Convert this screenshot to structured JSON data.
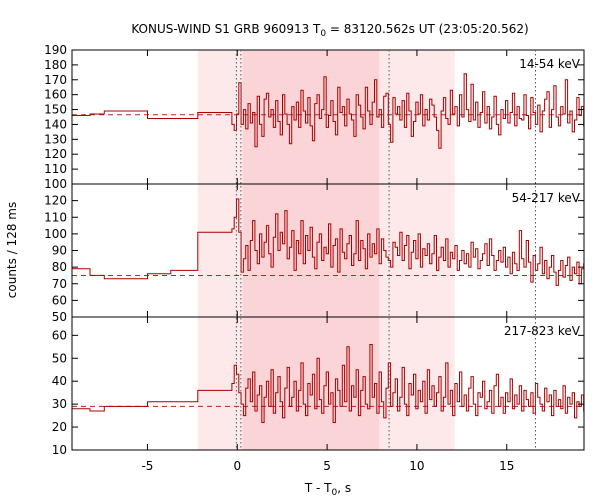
{
  "chart_data": {
    "type": "line",
    "title": "KONUS-WIND S1 GRB 960913 T",
    "title_sub": "0",
    "title_rest": " = 83120.562s UT (23:05:20.562)",
    "xlabel": "T - T",
    "xlabel_sub": "0",
    "xlabel_rest": ", s",
    "ylabel": "counts / 128 ms",
    "xlim": [
      -9.2,
      19.3
    ],
    "x_ticks": [
      -5,
      0,
      5,
      10,
      15
    ],
    "x_tick_labels": [
      "-5",
      "0",
      "5",
      "10",
      "15"
    ],
    "grid": false,
    "colors": {
      "line": "#aa0000",
      "background": "#bb2222",
      "shade_outer": "#fde8ea",
      "shade_inner": "#fbd4d8"
    },
    "shaded_intervals": [
      {
        "from": -2.2,
        "to": 12.1,
        "level": "outer"
      },
      {
        "from": 0.3,
        "to": 7.9,
        "level": "inner"
      }
    ],
    "vertical_markers": [
      -0.05,
      0.2,
      8.45,
      16.6
    ],
    "panels": [
      {
        "label": "14-54 keV",
        "ylim": [
          100,
          190
        ],
        "y_ticks": [
          100,
          110,
          120,
          130,
          140,
          150,
          160,
          170,
          180,
          190
        ],
        "y_tick_labels": [
          "100",
          "110",
          "120",
          "130",
          "140",
          "150",
          "160",
          "170",
          "180",
          "190"
        ],
        "background": 146.5,
        "coarse_bins": [
          {
            "from": -9.2,
            "to": -8.2,
            "value": 146
          },
          {
            "from": -8.2,
            "to": -7.4,
            "value": 147
          },
          {
            "from": -7.4,
            "to": -5.0,
            "value": 149
          },
          {
            "from": -5.0,
            "to": -2.2,
            "value": 144
          },
          {
            "from": -2.2,
            "to": -0.3,
            "value": 148
          }
        ],
        "fine_start": -0.3,
        "fine_step": 0.128,
        "fine_values": [
          140,
          136,
          147,
          168,
          140,
          150,
          137,
          154,
          141,
          148,
          125,
          159,
          140,
          132,
          157,
          161,
          145,
          150,
          138,
          156,
          142,
          133,
          160,
          147,
          140,
          127,
          152,
          143,
          155,
          138,
          163,
          149,
          141,
          158,
          139,
          129,
          154,
          160,
          144,
          150,
          172,
          138,
          146,
          156,
          142,
          133,
          165,
          148,
          152,
          139,
          157,
          147,
          143,
          132,
          160,
          153,
          145,
          137,
          165,
          149,
          140,
          155,
          170,
          145,
          150,
          138,
          159,
          161,
          140,
          128,
          158,
          147,
          152,
          143,
          156,
          138,
          161,
          149,
          132,
          142,
          155,
          147,
          160,
          139,
          150,
          143,
          157,
          153,
          145,
          136,
          124,
          149,
          158,
          144,
          140,
          163,
          147,
          152,
          139,
          160,
          145,
          174,
          150,
          142,
          167,
          143,
          155,
          138,
          148,
          162,
          141,
          152,
          137,
          145,
          159,
          140,
          133,
          150,
          144,
          156,
          141,
          148,
          161,
          139,
          152,
          144,
          143,
          160,
          146,
          137,
          158,
          148,
          140,
          153,
          135,
          149,
          157,
          162,
          138,
          150,
          166,
          145,
          139,
          152,
          147,
          170,
          141,
          149,
          135,
          143,
          158,
          146,
          152,
          139,
          150,
          144,
          161,
          137,
          148,
          145,
          156,
          140,
          146,
          150
        ]
      },
      {
        "label": "54-217 keV",
        "ylim": [
          50,
          130
        ],
        "y_ticks": [
          50,
          60,
          70,
          80,
          90,
          100,
          110,
          120
        ],
        "y_tick_labels": [
          "50",
          "60",
          "70",
          "80",
          "90",
          "100",
          "110",
          "120"
        ],
        "background": 75,
        "coarse_bins": [
          {
            "from": -9.2,
            "to": -8.2,
            "value": 79
          },
          {
            "from": -8.2,
            "to": -7.4,
            "value": 75
          },
          {
            "from": -7.4,
            "to": -5.0,
            "value": 73
          },
          {
            "from": -5.0,
            "to": -3.7,
            "value": 76
          },
          {
            "from": -3.7,
            "to": -2.2,
            "value": 78
          },
          {
            "from": -2.2,
            "to": -0.3,
            "value": 101
          }
        ],
        "fine_start": -0.3,
        "fine_step": 0.128,
        "fine_values": [
          103,
          110,
          121,
          101,
          77,
          85,
          93,
          78,
          96,
          108,
          90,
          82,
          100,
          86,
          95,
          105,
          88,
          80,
          98,
          112,
          90,
          101,
          94,
          114,
          85,
          92,
          102,
          78,
          96,
          88,
          108,
          82,
          99,
          90,
          104,
          86,
          79,
          95,
          100,
          84,
          92,
          88,
          106,
          80,
          93,
          97,
          77,
          103,
          89,
          85,
          94,
          99,
          81,
          88,
          108,
          84,
          96,
          91,
          79,
          100,
          86,
          94,
          88,
          103,
          82,
          97,
          90,
          86,
          84,
          80,
          95,
          92,
          87,
          101,
          84,
          93,
          99,
          79,
          89,
          96,
          85,
          100,
          80,
          91,
          87,
          94,
          82,
          88,
          99,
          78,
          86,
          92,
          84,
          97,
          80,
          89,
          85,
          93,
          78,
          84,
          90,
          82,
          88,
          80,
          95,
          86,
          91,
          79,
          84,
          88,
          94,
          81,
          97,
          87,
          78,
          84,
          90,
          83,
          92,
          80,
          86,
          76,
          89,
          82,
          78,
          102,
          85,
          80,
          96,
          83,
          71,
          87,
          78,
          82,
          92,
          76,
          84,
          73,
          80,
          87,
          77,
          69,
          78,
          84,
          74,
          81,
          86,
          72,
          80,
          76,
          83,
          70,
          79,
          82,
          76,
          85,
          73,
          80,
          84,
          78,
          82,
          75,
          80,
          77
        ]
      },
      {
        "label": "217-823 keV",
        "ylim": [
          10,
          68
        ],
        "y_ticks": [
          10,
          20,
          30,
          40,
          50,
          60
        ],
        "y_tick_labels": [
          "10",
          "20",
          "30",
          "40",
          "50",
          "60"
        ],
        "background": 29,
        "coarse_bins": [
          {
            "from": -9.2,
            "to": -8.2,
            "value": 28
          },
          {
            "from": -8.2,
            "to": -7.4,
            "value": 27
          },
          {
            "from": -7.4,
            "to": -5.0,
            "value": 29
          },
          {
            "from": -5.0,
            "to": -2.2,
            "value": 31
          },
          {
            "from": -2.2,
            "to": -0.3,
            "value": 36
          }
        ],
        "fine_start": -0.3,
        "fine_step": 0.128,
        "fine_values": [
          39,
          47,
          43,
          35,
          30,
          25,
          37,
          41,
          31,
          44,
          27,
          34,
          38,
          22,
          33,
          40,
          29,
          45,
          26,
          35,
          42,
          31,
          24,
          37,
          46,
          29,
          33,
          40,
          27,
          36,
          48,
          30,
          25,
          39,
          34,
          43,
          28,
          50,
          32,
          26,
          38,
          44,
          30,
          35,
          22,
          41,
          36,
          29,
          47,
          31,
          55,
          27,
          38,
          33,
          45,
          25,
          36,
          42,
          30,
          28,
          56,
          33,
          39,
          26,
          44,
          31,
          24,
          37,
          48,
          29,
          35,
          41,
          27,
          33,
          46,
          30,
          25,
          39,
          34,
          43,
          28,
          36,
          31,
          40,
          26,
          45,
          32,
          38,
          29,
          35,
          42,
          27,
          33,
          48,
          30,
          36,
          25,
          39,
          31,
          44,
          29,
          34,
          27,
          37,
          42,
          30,
          25,
          35,
          33,
          40,
          28,
          31,
          36,
          26,
          38,
          43,
          29,
          33,
          26,
          35,
          31,
          41,
          28,
          34,
          30,
          38,
          27,
          36,
          32,
          29,
          35,
          26,
          39,
          33,
          30,
          27,
          37,
          31,
          34,
          25,
          36,
          29,
          32,
          28,
          38,
          26,
          33,
          30,
          35,
          24,
          31,
          29,
          34,
          27,
          30,
          33,
          25,
          29,
          31,
          27,
          34,
          28,
          30,
          26
        ]
      }
    ]
  }
}
